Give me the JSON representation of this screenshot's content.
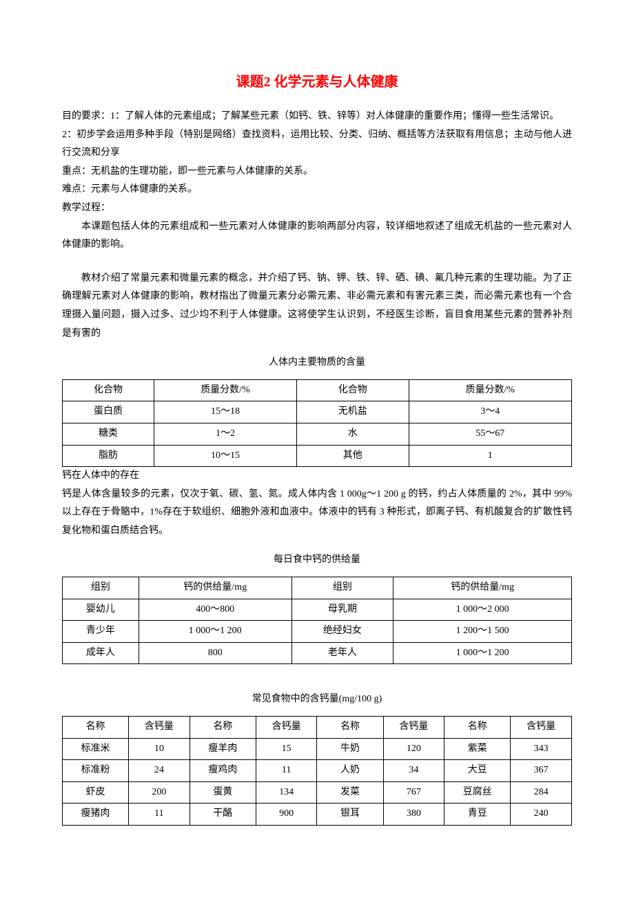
{
  "title_prefix": "课题2",
  "title_main": "化学元素与人体健康",
  "p_obj_label": "目的要求：1：",
  "p_obj_text": "了解人体的元素组成；了解某些元素（如钙、铁、锌等）对人体健康的重要作用；懂得一些生活常识。",
  "p_obj2_label": "2：",
  "p_obj2_text": "初步学会运用多种手段（特别是网络）查找资料，运用比较、分类、归纳、概括等方法获取有用信息；主动与他人进行交流和分享",
  "p_key": "重点：无机盐的生理功能，即一些元素与人体健康的关系。",
  "p_hard": "难点：元素与人体健康的关系。",
  "p_proc": "教学过程：",
  "p_body1": "本课题包括人体的元素组成和一些元素对人体健康的影响两部分内容，较详细地叙述了组成无机盐的一些元素对人体健康的影响。",
  "p_body2": "教材介绍了常量元素和微量元素的概念，并介绍了钙、钠、钾、铁、锌、硒、碘、氟几种元素的生理功能。为了正确理解元素对人体健康的影响，教材指出了微量元素分必需元素、非必需元素和有害元素三类，而必需元素也有一个合理摄入量问题，摄入过多、过少均不利于人体健康。这将使学生认识到，不经医生诊断，盲目食用某些元素的营养补剂是有害的",
  "p_cal_exist_title": "钙在人体中的存在",
  "p_cal_exist": "钙是人体含量较多的元素，仅次于氧、碳、氢、氮。成人体内含 1 000g～1 200 g 的钙，约占人体质量的 2%，其中 99%以上存在于骨骼中，1%存在于软组织、细胞外液和血液中。体液中的钙有 3 种形式，即离子钙、有机酸复合的扩散性钙复化物和蛋白质结合钙。",
  "table1": {
    "title": "人体内主要物质的含量",
    "headers": [
      "化合物",
      "质量分数/%",
      "化合物",
      "质量分数/%"
    ],
    "rows": [
      [
        "蛋白质",
        "15～18",
        "无机盐",
        "3～4"
      ],
      [
        "糖类",
        "1～2",
        "水",
        "55～67"
      ],
      [
        "脂肪",
        "10～15",
        "其他",
        "1"
      ]
    ],
    "col_widths": [
      "18%",
      "28%",
      "22%",
      "32%"
    ]
  },
  "table2": {
    "title": "每日食中钙的供给量",
    "headers": [
      "组别",
      "钙的供给量/mg",
      "组别",
      "钙的供给量/mg"
    ],
    "rows": [
      [
        "婴幼儿",
        "400～800",
        "母乳期",
        "1 000～2 000"
      ],
      [
        "青少年",
        "1 000～1 200",
        "绝经妇女",
        "1 200～1 500"
      ],
      [
        "成年人",
        "800",
        "老年人",
        "1 000～1 200"
      ]
    ],
    "col_widths": [
      "15%",
      "30%",
      "20%",
      "35%"
    ]
  },
  "table3": {
    "title": "常见食物中的含钙量(mg/100 g)",
    "headers": [
      "名称",
      "含钙量",
      "名称",
      "含钙量",
      "名称",
      "含钙量",
      "名称",
      "含钙量"
    ],
    "rows": [
      [
        "标准米",
        "10",
        "瘦羊肉",
        "15",
        "牛奶",
        "120",
        "紫菜",
        "343"
      ],
      [
        "标准粉",
        "24",
        "瘦鸡肉",
        "11",
        "人奶",
        "34",
        "大豆",
        "367"
      ],
      [
        "虾皮",
        "200",
        "蛋黄",
        "134",
        "发菜",
        "767",
        "豆腐丝",
        "284"
      ],
      [
        "瘦猪肉",
        "11",
        "干酪",
        "900",
        "银耳",
        "380",
        "青豆",
        "240"
      ]
    ],
    "col_widths": [
      "13%",
      "12%",
      "13%",
      "12%",
      "13%",
      "12%",
      "13%",
      "12%"
    ]
  }
}
